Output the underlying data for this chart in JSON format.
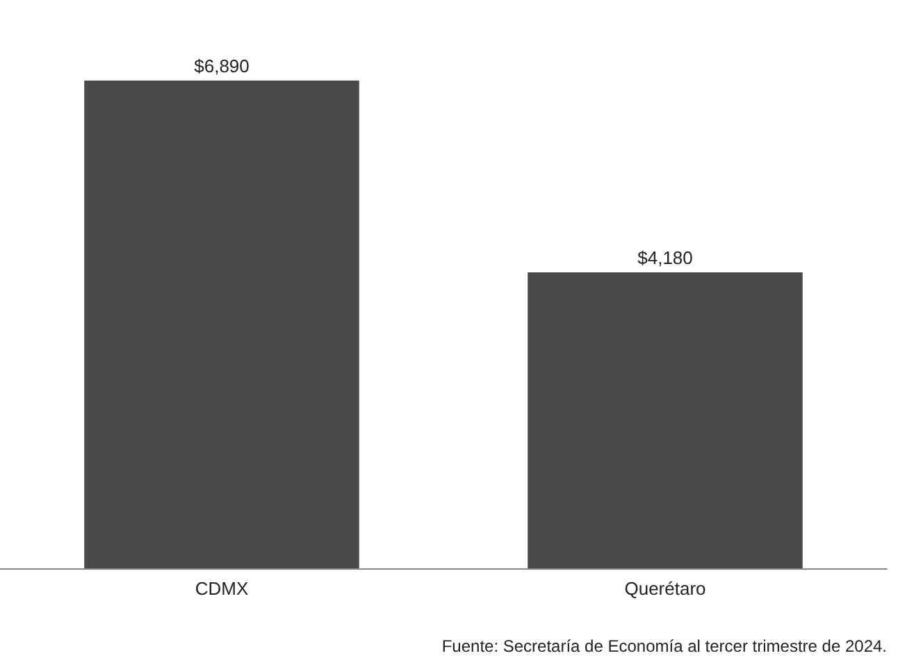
{
  "chart_data": {
    "type": "bar",
    "categories": [
      "CDMX",
      "Querétaro"
    ],
    "values": [
      6890,
      4180
    ],
    "color": "#4a4a4a",
    "value_labels": [
      "$6,890",
      "$4,180"
    ],
    "annotations": [
      "Fuente: Secretaría de Economía al tercer trimestre de 2024."
    ],
    "grid": false
  }
}
